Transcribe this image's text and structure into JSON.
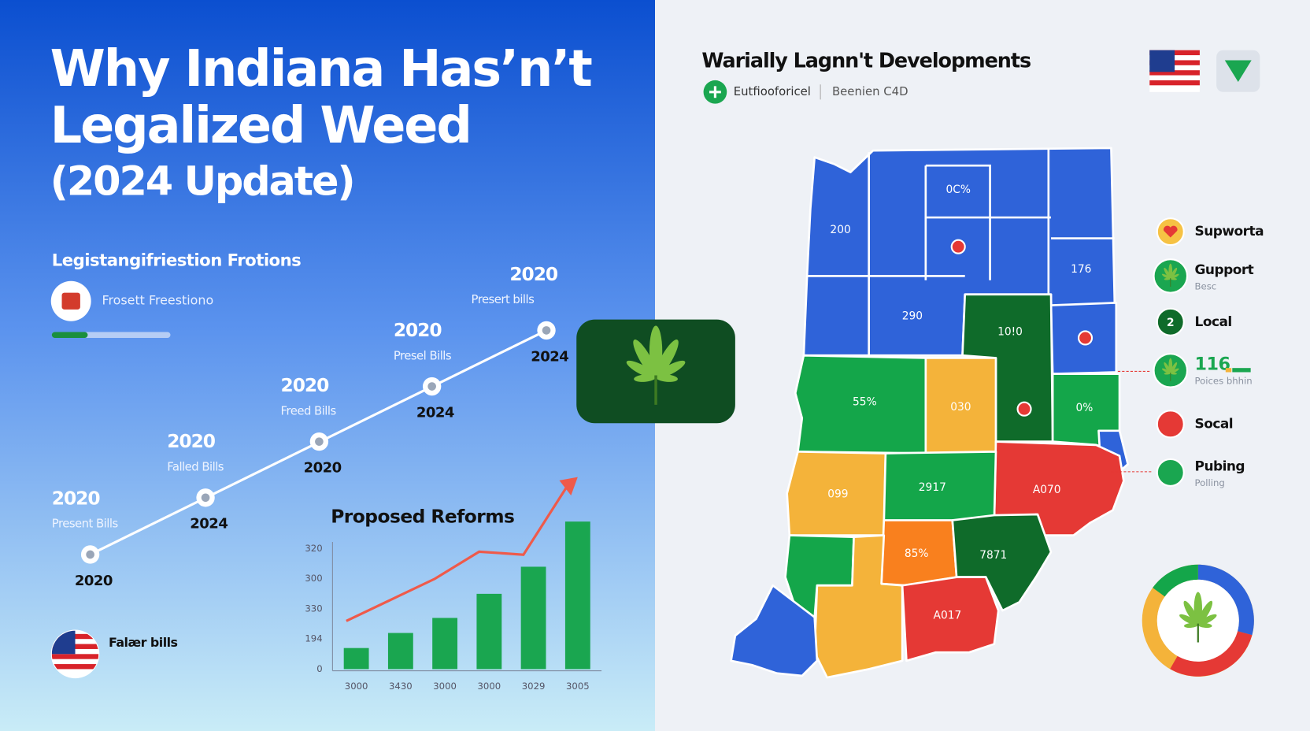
{
  "header": {
    "title_lines": [
      "Why Indiana Has’n’t",
      "Legalized Weed",
      "(2024 Update)"
    ]
  },
  "left": {
    "section_title": "Legistangifriestion Frotions",
    "status_label": "Frosett Freestiono",
    "footer_label": "Falær bills"
  },
  "timeline": {
    "points": [
      {
        "heading": "2020",
        "subtitle": "Present Bills",
        "year": "2020"
      },
      {
        "heading": "2020",
        "subtitle": "Falled Bills",
        "year": "2024"
      },
      {
        "heading": "2020",
        "subtitle": "Freed Bills",
        "year": "2020"
      },
      {
        "heading": "2020",
        "subtitle": "Presel Bills",
        "year": "2024"
      },
      {
        "heading": "2020",
        "subtitle": "Presert bills",
        "year": "2024"
      }
    ]
  },
  "chart_data": {
    "type": "bar",
    "title": "Proposed Reforms",
    "categories": [
      "3000",
      "3430",
      "3000",
      "3000",
      "3029",
      "3005"
    ],
    "values": [
      0.7,
      1.2,
      1.7,
      2.5,
      3.4,
      4.9
    ],
    "color": "#1aa650",
    "trend": {
      "values": [
        1.6,
        2.3,
        3.0,
        3.9,
        3.8,
        6.1
      ],
      "color": "#ef5a4a"
    },
    "y_labels": [
      "0",
      "194",
      "330",
      "300",
      "320"
    ],
    "ylim": [
      0,
      6.5
    ]
  },
  "map": {
    "title": "Warially Lagnn't Developments",
    "tag1": "Eutfiooforicel",
    "tag2": "Beenien C4D",
    "region_labels": [
      "0C%",
      "200",
      "176",
      "290",
      "10!0",
      "55%",
      "030",
      "0%",
      "099",
      "2917",
      "A070",
      "85%",
      "7871",
      "A017"
    ]
  },
  "legend": {
    "items": [
      {
        "label": "Supworta"
      },
      {
        "label": "Gupport",
        "sublabel": "Besc"
      },
      {
        "badge": "2",
        "label": "Local"
      },
      {
        "label": "116",
        "sublabel": "Poices bhhin"
      },
      {
        "label": "Socal"
      },
      {
        "label": "Pubing",
        "sublabel": "Polling"
      }
    ]
  }
}
